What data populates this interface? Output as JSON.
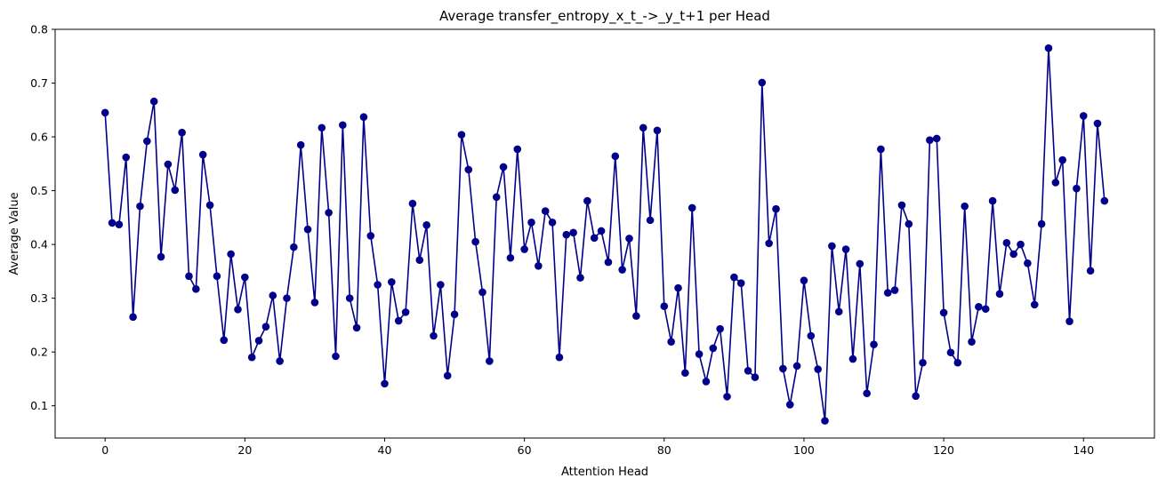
{
  "chart_data": {
    "type": "line",
    "title": "Average transfer_entropy_x_t_->_y_t+1 per Head",
    "xlabel": "Attention Head",
    "ylabel": "Average Value",
    "xlim": [
      -7.15,
      150.15
    ],
    "ylim": [
      0.04,
      0.8
    ],
    "xticks": [
      0,
      20,
      40,
      60,
      80,
      100,
      120,
      140
    ],
    "yticks": [
      0.1,
      0.2,
      0.3,
      0.4,
      0.5,
      0.6,
      0.7,
      0.8
    ],
    "grid": false,
    "line_color": "#00008b",
    "marker": "circle",
    "series": [
      {
        "x_start": 0,
        "values": [
          0.645,
          0.44,
          0.437,
          0.562,
          0.265,
          0.471,
          0.592,
          0.666,
          0.377,
          0.549,
          0.501,
          0.608,
          0.341,
          0.317,
          0.567,
          0.473,
          0.341,
          0.222,
          0.382,
          0.279,
          0.339,
          0.19,
          0.221,
          0.247,
          0.305,
          0.183,
          0.3,
          0.395,
          0.585,
          0.428,
          0.292,
          0.617,
          0.459,
          0.192,
          0.622,
          0.3,
          0.245,
          0.637,
          0.416,
          0.325,
          0.141,
          0.33,
          0.258,
          0.274,
          0.476,
          0.371,
          0.436,
          0.23,
          0.325,
          0.156,
          0.27,
          0.604,
          0.539,
          0.405,
          0.311,
          0.183,
          0.488,
          0.544,
          0.375,
          0.577,
          0.391,
          0.441,
          0.36,
          0.462,
          0.441,
          0.19,
          0.418,
          0.422,
          0.338,
          0.481,
          0.412,
          0.425,
          0.367,
          0.564,
          0.353,
          0.411,
          0.267,
          0.617,
          0.445,
          0.612,
          0.285,
          0.219,
          0.319,
          0.161,
          0.468,
          0.196,
          0.145,
          0.207,
          0.243,
          0.117,
          0.339,
          0.328,
          0.165,
          0.153,
          0.701,
          0.402,
          0.466,
          0.169,
          0.102,
          0.174,
          0.333,
          0.23,
          0.168,
          0.072,
          0.397,
          0.275,
          0.391,
          0.187,
          0.364,
          0.123,
          0.214,
          0.577,
          0.31,
          0.315,
          0.473,
          0.438,
          0.118,
          0.18,
          0.594,
          0.597,
          0.273,
          0.199,
          0.18,
          0.471,
          0.219,
          0.284,
          0.28,
          0.481,
          0.308,
          0.403,
          0.382,
          0.4,
          0.365,
          0.288,
          0.438,
          0.765,
          0.515,
          0.557,
          0.257,
          0.504,
          0.639,
          0.351,
          0.625,
          0.481
        ]
      }
    ]
  }
}
